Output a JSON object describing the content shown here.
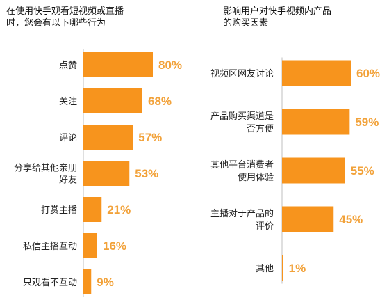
{
  "colors": {
    "bar": "#F7941D",
    "axis": "#BFBFBF",
    "value_label": "#F2A23A"
  },
  "chart_data": [
    {
      "type": "bar",
      "orientation": "horizontal",
      "title_lines": [
        "在使用快手观看短视频或直播",
        "时，您会有以下哪些行为"
      ],
      "categories": [
        [
          "点赞"
        ],
        [
          "关注"
        ],
        [
          "评论"
        ],
        [
          "分享给其他亲朋",
          "好友"
        ],
        [
          "打赏主播"
        ],
        [
          "私信主播互动"
        ],
        [
          "只观看不互动"
        ]
      ],
      "values": [
        80,
        68,
        57,
        53,
        21,
        16,
        9
      ],
      "value_labels": [
        "80%",
        "68%",
        "57%",
        "53%",
        "21%",
        "16%",
        "9%"
      ],
      "unit": "%",
      "xlim": [
        0,
        100
      ],
      "grid": false
    },
    {
      "type": "bar",
      "orientation": "horizontal",
      "title_lines": [
        "影响用户对快手视频内产品",
        "的购买因素"
      ],
      "categories": [
        [
          "视频区网友讨论"
        ],
        [
          "产品购买渠道是",
          "否方便"
        ],
        [
          "其他平台消费者",
          "使用体验"
        ],
        [
          "主播对于产品的",
          "评价"
        ],
        [
          "其他"
        ]
      ],
      "values": [
        60,
        59,
        55,
        45,
        1
      ],
      "value_labels": [
        "60%",
        "59%",
        "55%",
        "45%",
        "1%"
      ],
      "unit": "%",
      "xlim": [
        0,
        100
      ],
      "grid": false
    }
  ]
}
